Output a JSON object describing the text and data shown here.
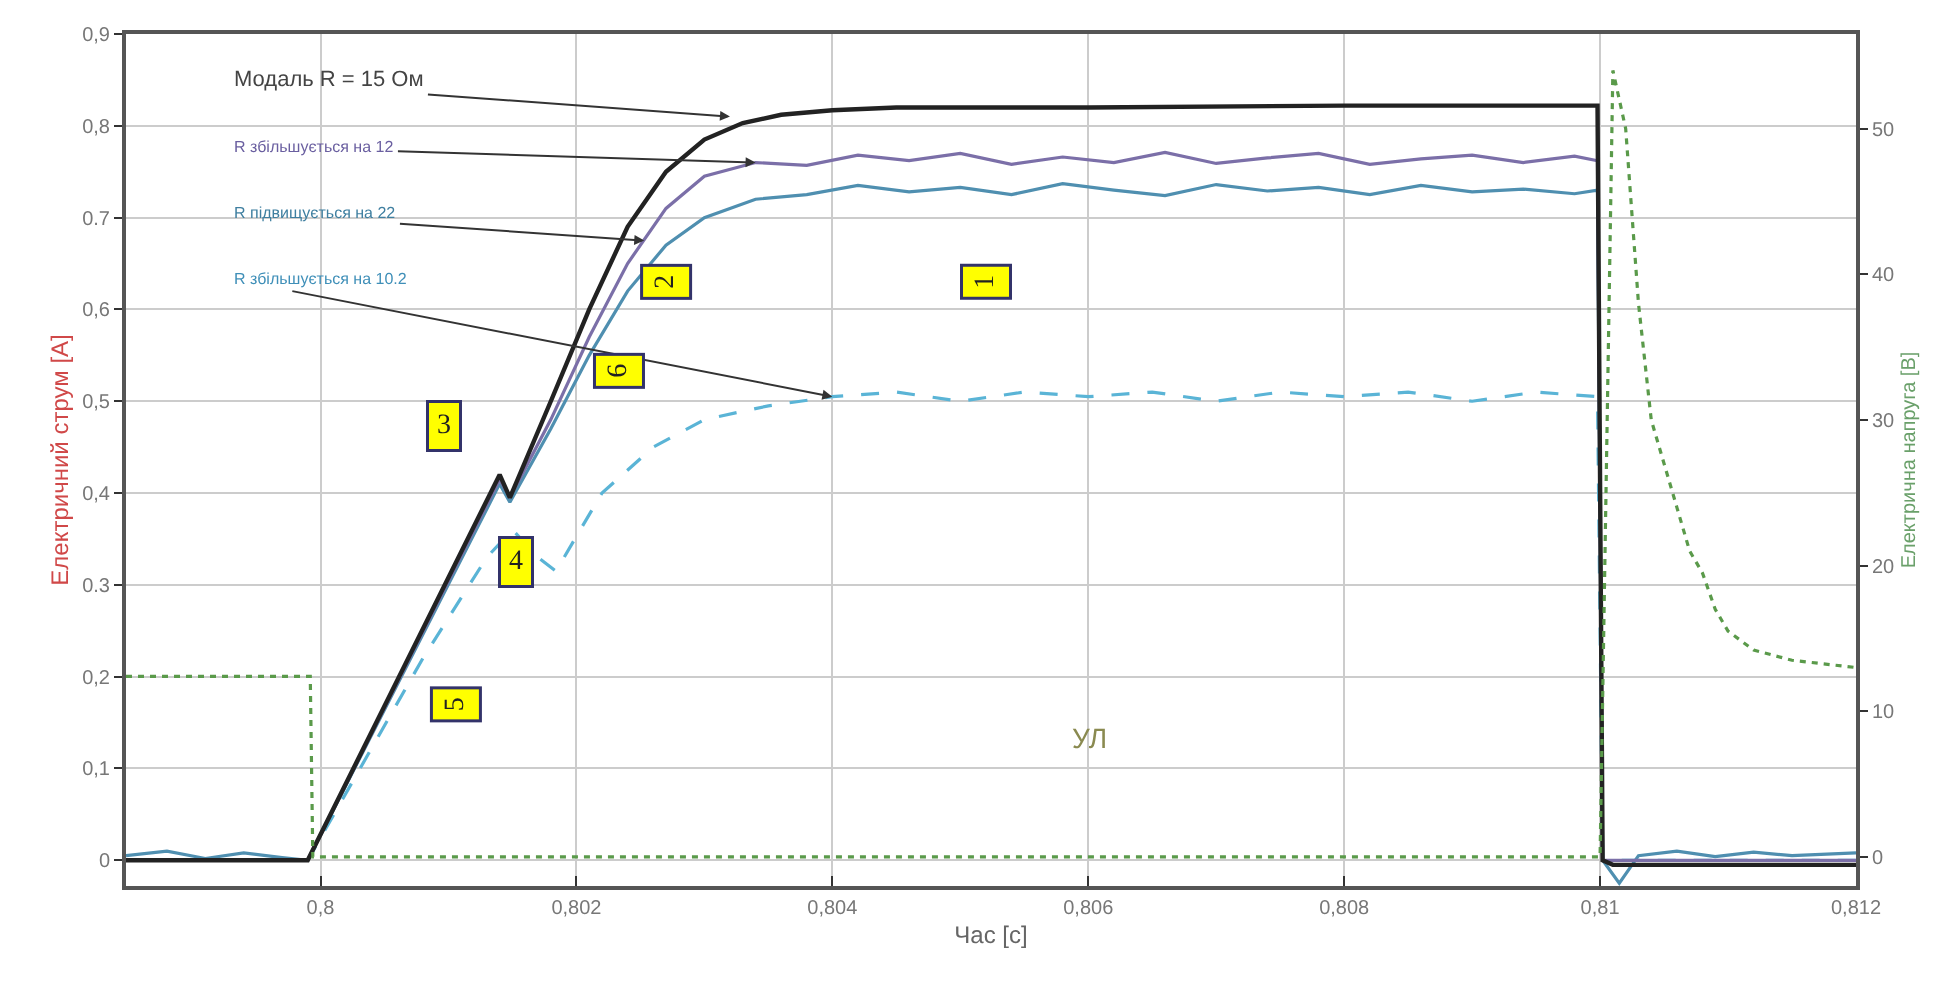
{
  "chart_data": {
    "type": "line",
    "xlabel": "Час [с]",
    "ylabel": "Електричний струм [A]",
    "y2label": "Електрична напруга [В]",
    "xlim": [
      0.79848,
      0.812
    ],
    "xticks": [
      {
        "value": 0.8,
        "label": "0,8"
      },
      {
        "value": 0.802,
        "label": "0,802"
      },
      {
        "value": 0.804,
        "label": "0,804"
      },
      {
        "value": 0.806,
        "label": "0,806"
      },
      {
        "value": 0.808,
        "label": "0,808"
      },
      {
        "value": 0.81,
        "label": "0,81"
      },
      {
        "value": 0.812,
        "label": "0,812"
      }
    ],
    "ylim": [
      -0.028,
      0.9
    ],
    "yticks": [
      0,
      {
        "value": 0.1,
        "label": "0,1"
      },
      {
        "value": 0.2,
        "label": "0,2"
      },
      0.3,
      {
        "value": 0.4,
        "label": "0,4"
      },
      {
        "value": 0.5,
        "label": "0,5"
      },
      {
        "value": 0.6,
        "label": "0,6"
      },
      0.7,
      {
        "value": 0.8,
        "label": "0,8"
      },
      {
        "value": 0.9,
        "label": "0,9"
      }
    ],
    "y2lim": [
      -2,
      56.5
    ],
    "y2ticks": [
      0,
      10,
      20,
      30,
      40,
      50
    ],
    "grid": true,
    "series": [
      {
        "color": "#5a9a4a",
        "axis": "y2",
        "line_style": "dotted",
        "x": [
          0.79848,
          0.79992,
          0.79994,
          0.81,
          0.8101,
          0.8102,
          0.8103,
          0.8104,
          0.8106,
          0.8107,
          0.8108,
          0.8109,
          0.811,
          0.8112,
          0.8115,
          0.812
        ],
        "values": [
          12.4,
          12.4,
          0,
          0,
          54,
          50,
          38,
          30,
          24,
          21,
          19.5,
          17,
          15.5,
          14.2,
          13.5,
          13
        ]
      },
      {
        "color": "#5ab4d6",
        "line_style": "dashed",
        "x": [
          0.79848,
          0.7999,
          0.8008,
          0.8013,
          0.8015,
          0.8017,
          0.80184,
          0.8022,
          0.8026,
          0.803,
          0.8035,
          0.804,
          0.8045,
          0.805,
          0.8055,
          0.806,
          0.8065,
          0.807,
          0.8075,
          0.808,
          0.8085,
          0.809,
          0.8095,
          0.80998,
          0.81002,
          0.812
        ],
        "values": [
          0,
          0,
          0.22,
          0.33,
          0.36,
          0.33,
          0.315,
          0.4,
          0.45,
          0.48,
          0.495,
          0.505,
          0.51,
          0.5,
          0.51,
          0.505,
          0.51,
          0.5,
          0.51,
          0.505,
          0.51,
          0.5,
          0.51,
          0.505,
          0,
          0
        ]
      },
      {
        "color": "#4f8fb0",
        "line_style": "solid",
        "x": [
          0.79848,
          0.7988,
          0.7991,
          0.7994,
          0.7997,
          0.7999,
          0.8014,
          0.80148,
          0.8018,
          0.8021,
          0.8024,
          0.8027,
          0.803,
          0.8034,
          0.8038,
          0.8042,
          0.8046,
          0.805,
          0.8054,
          0.8058,
          0.8062,
          0.8066,
          0.807,
          0.8074,
          0.8078,
          0.8082,
          0.8086,
          0.809,
          0.8094,
          0.8098,
          0.80998,
          0.81002,
          0.81015,
          0.8103,
          0.8106,
          0.8109,
          0.8112,
          0.8115,
          0.812
        ],
        "values": [
          0.005,
          0.01,
          0.002,
          0.008,
          0.003,
          0,
          0.41,
          0.39,
          0.47,
          0.55,
          0.62,
          0.67,
          0.7,
          0.72,
          0.725,
          0.735,
          0.728,
          0.733,
          0.725,
          0.737,
          0.73,
          0.724,
          0.736,
          0.729,
          0.733,
          0.725,
          0.735,
          0.728,
          0.731,
          0.726,
          0.73,
          0,
          -0.025,
          0.005,
          0.01,
          0.004,
          0.009,
          0.005,
          0.008
        ]
      },
      {
        "color": "#7b6fa8",
        "line_style": "solid",
        "x": [
          0.79848,
          0.7999,
          0.8014,
          0.80148,
          0.8018,
          0.8021,
          0.8024,
          0.8027,
          0.803,
          0.8034,
          0.8038,
          0.8042,
          0.8046,
          0.805,
          0.8054,
          0.8058,
          0.8062,
          0.8066,
          0.807,
          0.8074,
          0.8078,
          0.8082,
          0.8086,
          0.809,
          0.8094,
          0.8098,
          0.80998,
          0.81002,
          0.812
        ],
        "values": [
          0,
          0,
          0.415,
          0.395,
          0.48,
          0.57,
          0.65,
          0.71,
          0.745,
          0.76,
          0.757,
          0.768,
          0.762,
          0.77,
          0.758,
          0.766,
          0.76,
          0.771,
          0.759,
          0.765,
          0.77,
          0.758,
          0.764,
          0.768,
          0.76,
          0.767,
          0.762,
          0,
          0
        ]
      },
      {
        "color": "#222222",
        "line_style": "solid",
        "x": [
          0.79848,
          0.7999,
          0.8014,
          0.80148,
          0.8018,
          0.8021,
          0.8024,
          0.8027,
          0.803,
          0.8033,
          0.8036,
          0.804,
          0.8045,
          0.805,
          0.806,
          0.808,
          0.80998,
          0.81002,
          0.8101,
          0.812
        ],
        "values": [
          0,
          0,
          0.42,
          0.395,
          0.5,
          0.6,
          0.69,
          0.75,
          0.785,
          0.803,
          0.812,
          0.817,
          0.82,
          0.82,
          0.82,
          0.822,
          0.822,
          0,
          -0.005,
          -0.005
        ]
      }
    ],
    "annotations": [
      {
        "text": "Модаль R = 15 Ом",
        "x": 0.8032,
        "y": 0.81
      },
      {
        "text": "R збільшується на 12",
        "x": 0.8034,
        "y": 0.76
      },
      {
        "text": "R підвищується на 22",
        "x": 0.80253,
        "y": 0.675
      },
      {
        "text": "R збільшується на 10.2",
        "x": 0.804,
        "y": 0.505
      },
      {
        "text": "3",
        "x": 0.80097,
        "y": 0.472
      },
      {
        "text": "4",
        "x": 0.80153,
        "y": 0.326
      },
      {
        "text": "5",
        "x": 0.80106,
        "y": 0.17
      },
      {
        "text": "6",
        "x": 0.80234,
        "y": 0.533
      },
      {
        "text": "2",
        "x": 0.8027,
        "y": 0.63
      },
      {
        "text": "1",
        "x": 0.8052,
        "y": 0.63
      },
      "УЛ"
    ]
  }
}
